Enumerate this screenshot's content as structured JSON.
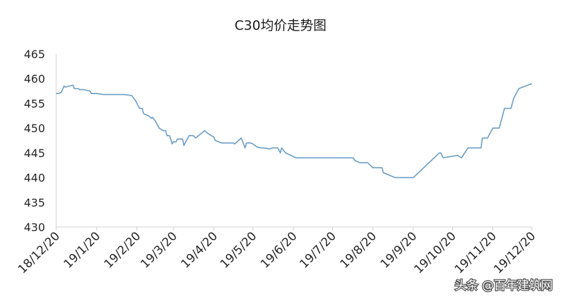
{
  "chart_data": {
    "type": "line",
    "title": "C30均价走势图",
    "xlabel": "",
    "ylabel": "",
    "ylim": [
      430,
      465
    ],
    "y_ticks": [
      430,
      435,
      440,
      445,
      450,
      455,
      460,
      465
    ],
    "x_ticks": [
      "18/12/20",
      "19/1/20",
      "19/2/20",
      "19/3/20",
      "19/4/20",
      "19/5/20",
      "19/6/20",
      "19/7/20",
      "19/8/20",
      "19/9/20",
      "19/10/20",
      "19/11/20",
      "19/12/20"
    ],
    "grid": false,
    "legend": "none",
    "line_color": "#6a9cc7",
    "series": [
      {
        "x": [
          "2018-12-20",
          "2018-12-22",
          "2018-12-24",
          "2018-12-26",
          "2018-12-27",
          "2018-12-30",
          "2019-01-02",
          "2019-01-03",
          "2019-01-06",
          "2019-01-07",
          "2019-01-10",
          "2019-01-15",
          "2019-01-16",
          "2019-01-20",
          "2019-01-25",
          "2019-02-01",
          "2019-02-10",
          "2019-02-16",
          "2019-02-19",
          "2019-02-20",
          "2019-02-21",
          "2019-02-22",
          "2019-02-24",
          "2019-02-25",
          "2019-02-26",
          "2019-03-01",
          "2019-03-03",
          "2019-03-04",
          "2019-03-05",
          "2019-03-06",
          "2019-03-08",
          "2019-03-09",
          "2019-03-12",
          "2019-03-14",
          "2019-03-15",
          "2019-03-17",
          "2019-03-19",
          "2019-03-20",
          "2019-03-21",
          "2019-03-22",
          "2019-03-23",
          "2019-03-27",
          "2019-03-28",
          "2019-04-01",
          "2019-04-04",
          "2019-04-05",
          "2019-04-06",
          "2019-04-13",
          "2019-04-15",
          "2019-04-18",
          "2019-04-20",
          "2019-04-21",
          "2019-04-26",
          "2019-04-27",
          "2019-05-01",
          "2019-05-03",
          "2019-05-05",
          "2019-05-06",
          "2019-05-11",
          "2019-05-14",
          "2019-05-15",
          "2019-05-16",
          "2019-05-18",
          "2019-05-20",
          "2019-05-23",
          "2019-05-26",
          "2019-05-28",
          "2019-06-02",
          "2019-06-04",
          "2019-06-08",
          "2019-06-10",
          "2019-06-11",
          "2019-06-14",
          "2019-06-22",
          "2019-07-20",
          "2019-08-05",
          "2019-08-06",
          "2019-08-10",
          "2019-08-15",
          "2019-08-16",
          "2019-08-20",
          "2019-08-27",
          "2019-08-28",
          "2019-09-06",
          "2019-09-20",
          "2019-10-10",
          "2019-10-11",
          "2019-10-13",
          "2019-10-24",
          "2019-10-27",
          "2019-11-01",
          "2019-11-04",
          "2019-11-08",
          "2019-11-11",
          "2019-11-12",
          "2019-11-16",
          "2019-11-20",
          "2019-11-25",
          "2019-11-29",
          "2019-12-04",
          "2019-12-06",
          "2019-12-10",
          "2019-12-20"
        ],
        "values": [
          457,
          457,
          457.3,
          458.5,
          458.3,
          458.5,
          458.7,
          458,
          458,
          457.8,
          457.8,
          457.5,
          457,
          457,
          456.8,
          456.8,
          456.8,
          456.6,
          455.5,
          455,
          454.5,
          454,
          454,
          453,
          452.8,
          452.5,
          452,
          452.2,
          451.8,
          451.5,
          450.5,
          450,
          449.5,
          449.5,
          448.5,
          448.5,
          446.8,
          447.3,
          447.2,
          447.2,
          447.8,
          447.8,
          446.5,
          448.5,
          448.5,
          448.3,
          448,
          449.5,
          449,
          448.5,
          448.2,
          447.5,
          447,
          447,
          447,
          447,
          447,
          446.8,
          448,
          446,
          447,
          447,
          447,
          446.8,
          446.2,
          446,
          446,
          445.8,
          446,
          446,
          445,
          446,
          445,
          444,
          444,
          444,
          443.5,
          443,
          443,
          443,
          442,
          442,
          441,
          440,
          440,
          445,
          445,
          444,
          444.5,
          444,
          446,
          446,
          446,
          446,
          448,
          448,
          450,
          450,
          454,
          454,
          456,
          458,
          459
        ]
      }
    ]
  },
  "watermark": "头条 @百年建筑网"
}
